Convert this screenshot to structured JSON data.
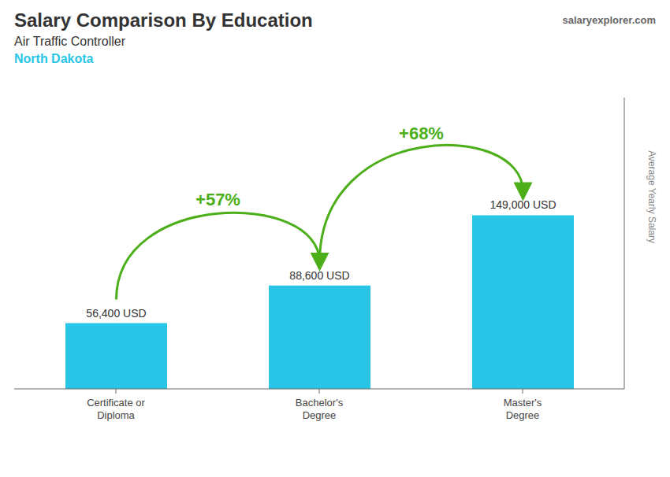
{
  "chart_data": {
    "type": "bar",
    "title": "Salary Comparison By Education",
    "subtitle": "Air Traffic Controller",
    "annotations": [
      "North Dakota",
      "salaryexplorer.com"
    ],
    "ylabel": "Average Yearly Salary",
    "categories": [
      "Certificate or\nDiploma",
      "Bachelor's\nDegree",
      "Master's\nDegree"
    ],
    "values": [
      56400,
      88600,
      149000
    ],
    "value_labels": [
      "56,400 USD",
      "88,600 USD",
      "149,000 USD"
    ],
    "data_labels": true,
    "changes": [
      {
        "value": 57,
        "label": "+57%"
      },
      {
        "value": 68,
        "label": "+68%"
      }
    ],
    "color": "#29C5E6",
    "ylim": [
      0,
      250000
    ],
    "tick_labels": "x",
    "grid": false
  }
}
